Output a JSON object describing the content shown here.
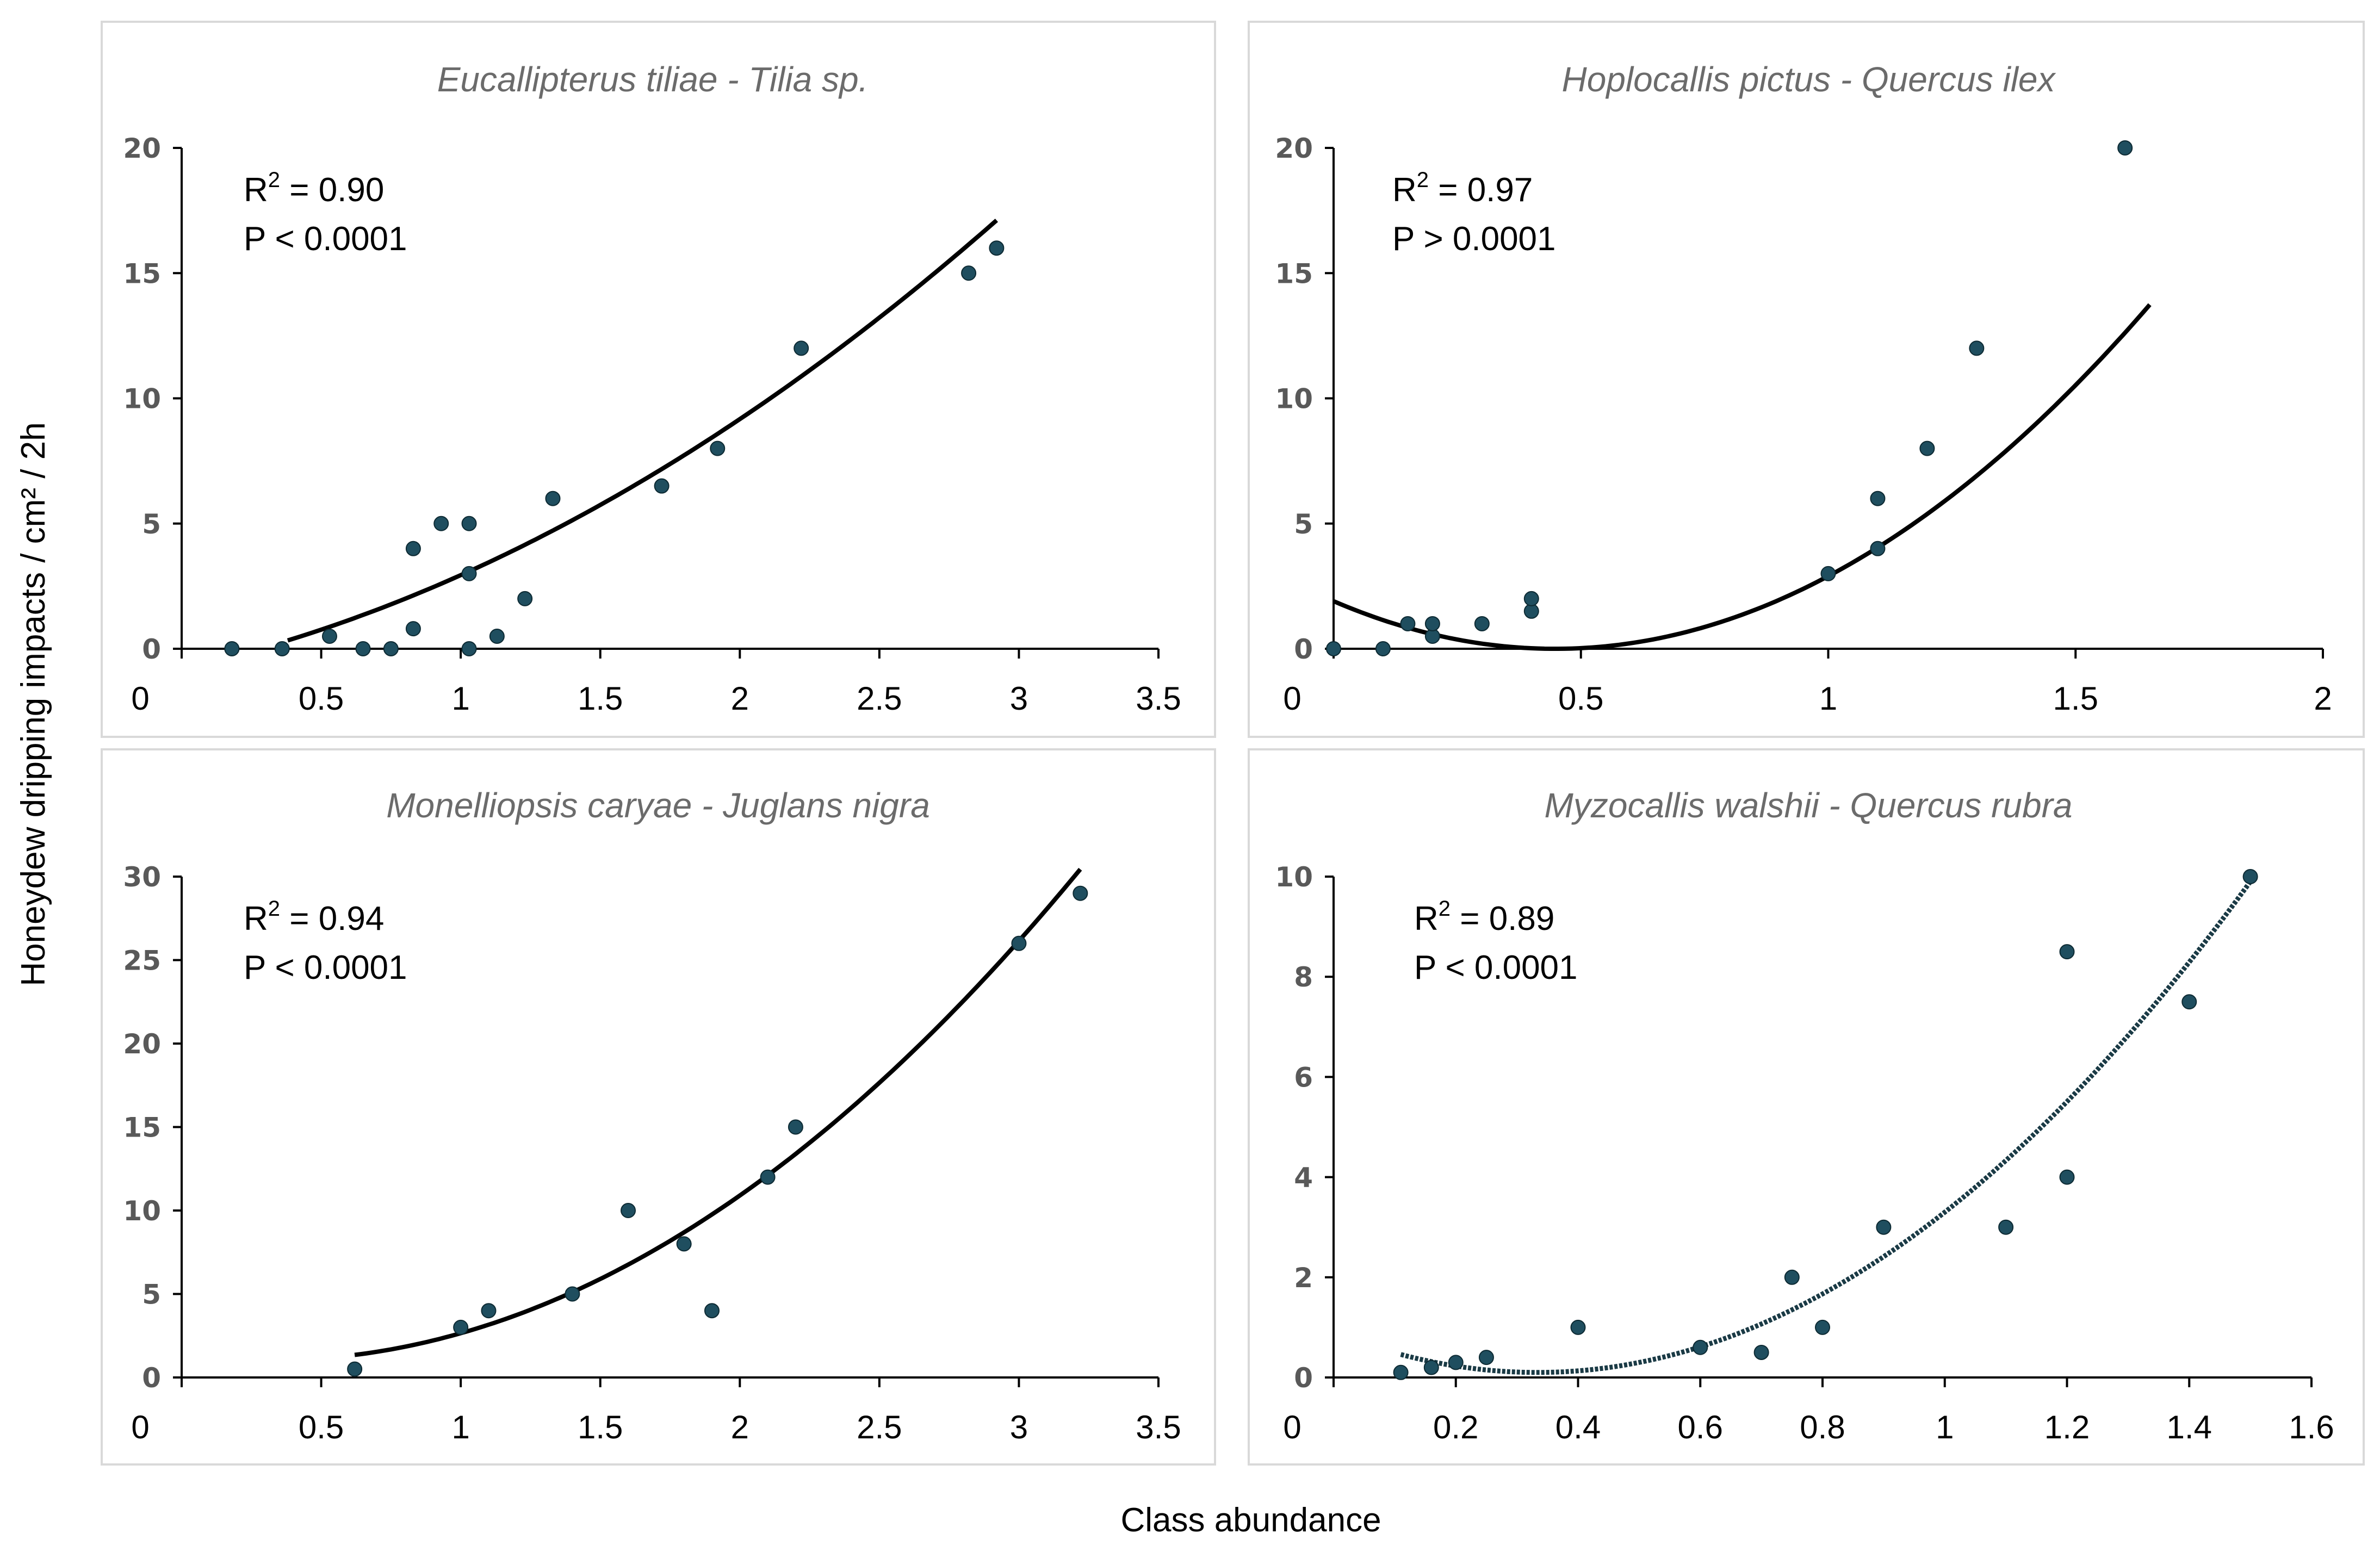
{
  "figure": {
    "ylabel": "Honeydew dripping impacts / cm² / 2h",
    "xlabel": "Class abundance",
    "colors": {
      "marker": "#1f4e5f",
      "curve": "#000000",
      "tick_text": "#595959",
      "title_text": "#6b6b6b",
      "frame": "#d9d9d9"
    }
  },
  "chart_data": [
    {
      "type": "scatter",
      "title": "Eucallipterus tiliae - Tilia sp.",
      "r2_base": "R",
      "r2_exp": "2",
      "r2_value": " = 0.90",
      "p_text": "P < 0.0001",
      "xlim": [
        0,
        3.5
      ],
      "ylim": [
        0,
        20
      ],
      "xticks": [
        0,
        0.5,
        1,
        1.5,
        2,
        2.5,
        3,
        3.5
      ],
      "xtick_labels": [
        "0",
        "0.5",
        "1",
        "1.5",
        "2",
        "2.5",
        "3",
        "3.5"
      ],
      "yticks": [
        0,
        5,
        10,
        15,
        20
      ],
      "ytick_labels": [
        "0",
        "5",
        "10",
        "15",
        "20"
      ],
      "points": [
        [
          0.18,
          0
        ],
        [
          0.36,
          0
        ],
        [
          0.53,
          0.5
        ],
        [
          0.65,
          0
        ],
        [
          0.75,
          0
        ],
        [
          0.83,
          0.8
        ],
        [
          0.83,
          4
        ],
        [
          0.93,
          5
        ],
        [
          1.03,
          5
        ],
        [
          1.03,
          3
        ],
        [
          1.03,
          0
        ],
        [
          1.13,
          0.5
        ],
        [
          1.23,
          2
        ],
        [
          1.33,
          6
        ],
        [
          1.72,
          6.5
        ],
        [
          1.92,
          8
        ],
        [
          2.22,
          12
        ],
        [
          2.82,
          15
        ],
        [
          2.92,
          16
        ]
      ],
      "fit": {
        "poly": [
          -0.79,
          2.48,
          1.25
        ],
        "x_range": [
          0.38,
          2.92
        ],
        "dashed": false
      }
    },
    {
      "type": "scatter",
      "title": "Hoplocallis pictus - Quercus ilex",
      "r2_base": "R",
      "r2_exp": "2",
      "r2_value": " = 0.97",
      "p_text": "P > 0.0001",
      "xlim": [
        0,
        2
      ],
      "ylim": [
        0,
        20
      ],
      "xticks": [
        0,
        0.5,
        1,
        1.5,
        2
      ],
      "xtick_labels": [
        "0",
        "0.5",
        "1",
        "1.5",
        "2"
      ],
      "yticks": [
        0,
        5,
        10,
        15,
        20
      ],
      "ytick_labels": [
        "0",
        "5",
        "10",
        "15",
        "20"
      ],
      "points": [
        [
          0,
          0
        ],
        [
          0.1,
          0
        ],
        [
          0.15,
          1
        ],
        [
          0.2,
          0.5
        ],
        [
          0.2,
          1
        ],
        [
          0.3,
          1
        ],
        [
          0.4,
          1.5
        ],
        [
          0.4,
          2
        ],
        [
          1.0,
          3
        ],
        [
          1.1,
          4
        ],
        [
          1.1,
          6
        ],
        [
          1.2,
          8
        ],
        [
          1.3,
          12
        ],
        [
          1.6,
          20
        ]
      ],
      "fit": {
        "poly": [
          1.9,
          -8.5,
          9.5
        ],
        "x_range": [
          0,
          1.65
        ],
        "dashed": false
      }
    },
    {
      "type": "scatter",
      "title": "Monelliopsis caryae - Juglans nigra",
      "r2_base": "R",
      "r2_exp": "2",
      "r2_value": " = 0.94",
      "p_text": "P < 0.0001",
      "xlim": [
        0,
        3.5
      ],
      "ylim": [
        0,
        30
      ],
      "xticks": [
        0,
        0.5,
        1,
        1.5,
        2,
        2.5,
        3,
        3.5
      ],
      "xtick_labels": [
        "0",
        "0.5",
        "1",
        "1.5",
        "2",
        "2.5",
        "3",
        "3.5"
      ],
      "yticks": [
        0,
        5,
        10,
        15,
        20,
        25,
        30
      ],
      "ytick_labels": [
        "0",
        "5",
        "10",
        "15",
        "20",
        "25",
        "30"
      ],
      "points": [
        [
          0.62,
          0.5
        ],
        [
          1.0,
          3
        ],
        [
          1.1,
          4
        ],
        [
          1.4,
          5
        ],
        [
          1.6,
          10
        ],
        [
          1.8,
          8
        ],
        [
          1.9,
          4
        ],
        [
          2.1,
          12
        ],
        [
          2.2,
          15
        ],
        [
          3.0,
          26
        ],
        [
          3.22,
          29
        ]
      ],
      "fit": {
        "poly": [
          1.4,
          -2.25,
          3.5
        ],
        "x_range": [
          0.62,
          3.22
        ],
        "dashed": false
      }
    },
    {
      "type": "scatter",
      "title": "Myzocallis walshii - Quercus rubra",
      "r2_base": "R",
      "r2_exp": "2",
      "r2_value": " = 0.89",
      "p_text": "P < 0.0001",
      "xlim": [
        0,
        1.6
      ],
      "ylim": [
        0,
        10
      ],
      "xticks": [
        0,
        0.2,
        0.4,
        0.6,
        0.8,
        1,
        1.2,
        1.4,
        1.6
      ],
      "xtick_labels": [
        "0",
        "0.2",
        "0.4",
        "0.6",
        "0.8",
        "1",
        "1.2",
        "1.4",
        "1.6"
      ],
      "yticks": [
        0,
        2,
        4,
        6,
        8,
        10
      ],
      "ytick_labels": [
        "0",
        "2",
        "4",
        "6",
        "8",
        "10"
      ],
      "points": [
        [
          0.11,
          0.1
        ],
        [
          0.16,
          0.2
        ],
        [
          0.2,
          0.3
        ],
        [
          0.25,
          0.4
        ],
        [
          0.4,
          1
        ],
        [
          0.6,
          0.6
        ],
        [
          0.7,
          0.5
        ],
        [
          0.75,
          2
        ],
        [
          0.8,
          1
        ],
        [
          0.9,
          3
        ],
        [
          1.1,
          3
        ],
        [
          1.2,
          8.5
        ],
        [
          1.2,
          4
        ],
        [
          1.4,
          7.5
        ],
        [
          1.5,
          10
        ]
      ],
      "fit": {
        "poly": [
          0.9,
          -4.8,
          7.2
        ],
        "x_range": [
          0.11,
          1.5
        ],
        "dashed": true
      }
    }
  ]
}
